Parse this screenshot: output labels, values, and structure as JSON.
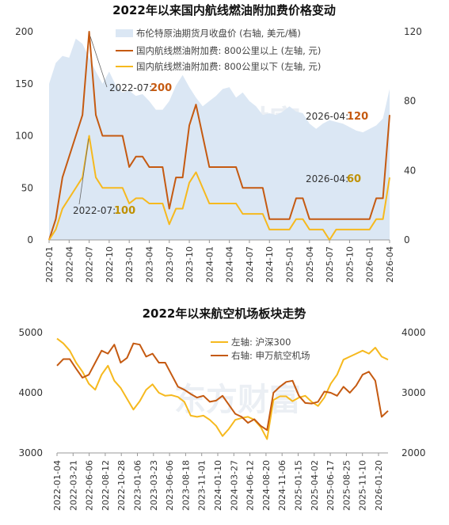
{
  "chart_data": [
    {
      "type": "line",
      "title": "2022年以来国内航线燃油附加费价格变动",
      "watermark": "东方财富",
      "x": [
        "2022-01",
        "2022-02",
        "2022-03",
        "2022-04",
        "2022-05",
        "2022-06",
        "2022-07",
        "2022-08",
        "2022-09",
        "2022-10",
        "2022-11",
        "2022-12",
        "2023-01",
        "2023-02",
        "2023-03",
        "2023-04",
        "2023-05",
        "2023-06",
        "2023-07",
        "2023-08",
        "2023-09",
        "2023-10",
        "2023-11",
        "2023-12",
        "2024-01",
        "2024-02",
        "2024-03",
        "2024-04",
        "2024-05",
        "2024-06",
        "2024-07",
        "2024-08",
        "2024-09",
        "2024-10",
        "2024-11",
        "2024-12",
        "2025-01",
        "2025-02",
        "2025-03",
        "2025-04",
        "2025-05",
        "2025-06",
        "2025-07",
        "2025-08",
        "2025-09",
        "2025-10",
        "2025-11",
        "2025-12",
        "2026-01",
        "2026-02",
        "2026-03",
        "2026-04"
      ],
      "xticks": [
        "2022-01",
        "2022-04",
        "2022-07",
        "2022-10",
        "2023-01",
        "2023-04",
        "2023-07",
        "2023-10",
        "2024-01",
        "2024-04",
        "2024-07",
        "2024-10",
        "2025-01",
        "2025-04",
        "2025-07",
        "2025-10",
        "2026-01",
        "2026-04"
      ],
      "ylim_left": [
        0,
        200
      ],
      "yticks_left": [
        0,
        50,
        100,
        150,
        200
      ],
      "ylim_right": [
        0,
        120
      ],
      "yticks_right": [
        0,
        40,
        80,
        120
      ],
      "series": [
        {
          "name": "布伦特原油期货月收盘价 (右轴, 美元/桶)",
          "axis": "right",
          "kind": "area",
          "color": "#dbe7f4",
          "values": [
            90,
            102,
            106,
            105,
            116,
            113,
            105,
            97,
            90,
            97,
            89,
            85,
            86,
            83,
            84,
            80,
            75,
            75,
            80,
            89,
            95,
            88,
            82,
            77,
            80,
            83,
            87,
            88,
            82,
            85,
            80,
            77,
            72,
            73,
            72,
            74,
            77,
            74,
            73,
            67,
            64,
            67,
            69,
            68,
            67,
            65,
            63,
            62,
            64,
            66,
            70,
            87
          ]
        },
        {
          "name": "国内航线燃油附加费: 800公里以上 (左轴, 元)",
          "axis": "left",
          "kind": "line",
          "color": "#c55a11",
          "values": [
            0,
            20,
            60,
            80,
            100,
            120,
            200,
            120,
            100,
            100,
            100,
            100,
            70,
            80,
            80,
            70,
            70,
            70,
            30,
            60,
            60,
            110,
            130,
            100,
            70,
            70,
            70,
            70,
            70,
            50,
            50,
            50,
            50,
            20,
            20,
            20,
            20,
            40,
            40,
            20,
            20,
            20,
            20,
            20,
            20,
            20,
            20,
            20,
            20,
            40,
            40,
            120
          ]
        },
        {
          "name": "国内航线燃油附加费: 800公里以下 (左轴, 元)",
          "axis": "left",
          "kind": "line",
          "color": "#f6b91e",
          "values": [
            0,
            10,
            30,
            40,
            50,
            60,
            100,
            60,
            50,
            50,
            50,
            50,
            35,
            40,
            40,
            35,
            35,
            35,
            15,
            30,
            30,
            55,
            65,
            50,
            35,
            35,
            35,
            35,
            35,
            25,
            25,
            25,
            25,
            10,
            10,
            10,
            10,
            20,
            20,
            10,
            10,
            10,
            0,
            10,
            10,
            10,
            10,
            10,
            10,
            20,
            20,
            60
          ]
        }
      ],
      "annotations": [
        {
          "text": "2022-07:",
          "value": "200",
          "color": "#c55a11"
        },
        {
          "text": "2022-07:",
          "value": "100",
          "color": "#bf9000"
        },
        {
          "text": "2026-04:",
          "value": "120",
          "color": "#c55a11"
        },
        {
          "text": "2026-04:",
          "value": "60",
          "color": "#bf9000"
        }
      ]
    },
    {
      "type": "line",
      "title": "2022年以来航空机场板块走势",
      "watermark": "东方财富",
      "xticks": [
        "2022-01-04",
        "2022-03-21",
        "2022-06-06",
        "2022-08-12",
        "2022-10-28",
        "2023-01-06",
        "2023-03-23",
        "2023-06-06",
        "2023-08-18",
        "2023-11-01",
        "2024-01-10",
        "2024-03-27",
        "2024-06-12",
        "2024-08-20",
        "2024-11-06",
        "2025-01-15",
        "2025-04-02",
        "2025-06-17",
        "2025-08-25",
        "2025-11-10",
        "2026-01-20"
      ],
      "ylim_left": [
        3000,
        5000
      ],
      "yticks_left": [
        3000,
        4000,
        5000
      ],
      "ylim_right": [
        2000,
        4000
      ],
      "yticks_right": [
        2000,
        3000,
        4000
      ],
      "series": [
        {
          "name": "左轴: 沪深300",
          "axis": "left",
          "color": "#f6b91e",
          "values": [
            4900,
            4820,
            4700,
            4500,
            4350,
            4150,
            4050,
            4300,
            4450,
            4200,
            4080,
            3900,
            3720,
            3860,
            4050,
            4140,
            4000,
            3950,
            3960,
            3930,
            3850,
            3620,
            3600,
            3620,
            3550,
            3450,
            3280,
            3400,
            3550,
            3580,
            3600,
            3550,
            3430,
            3230,
            3880,
            3940,
            3940,
            3860,
            3920,
            3950,
            3850,
            3780,
            3920,
            4150,
            4300,
            4550,
            4600,
            4650,
            4700,
            4650,
            4750,
            4600,
            4550
          ]
        },
        {
          "name": "右轴: 申万航空机场",
          "axis": "right",
          "color": "#c55a11",
          "values": [
            3450,
            3560,
            3560,
            3400,
            3250,
            3300,
            3500,
            3700,
            3650,
            3800,
            3500,
            3580,
            3820,
            3800,
            3600,
            3650,
            3500,
            3500,
            3300,
            3100,
            3050,
            2980,
            2920,
            2950,
            2850,
            2870,
            2950,
            2800,
            2650,
            2600,
            2500,
            2560,
            2450,
            2380,
            3000,
            3100,
            3180,
            3200,
            2950,
            2830,
            2820,
            2850,
            3020,
            3000,
            2950,
            3100,
            3000,
            3120,
            3300,
            3350,
            3200,
            2600,
            2700
          ]
        }
      ]
    }
  ]
}
